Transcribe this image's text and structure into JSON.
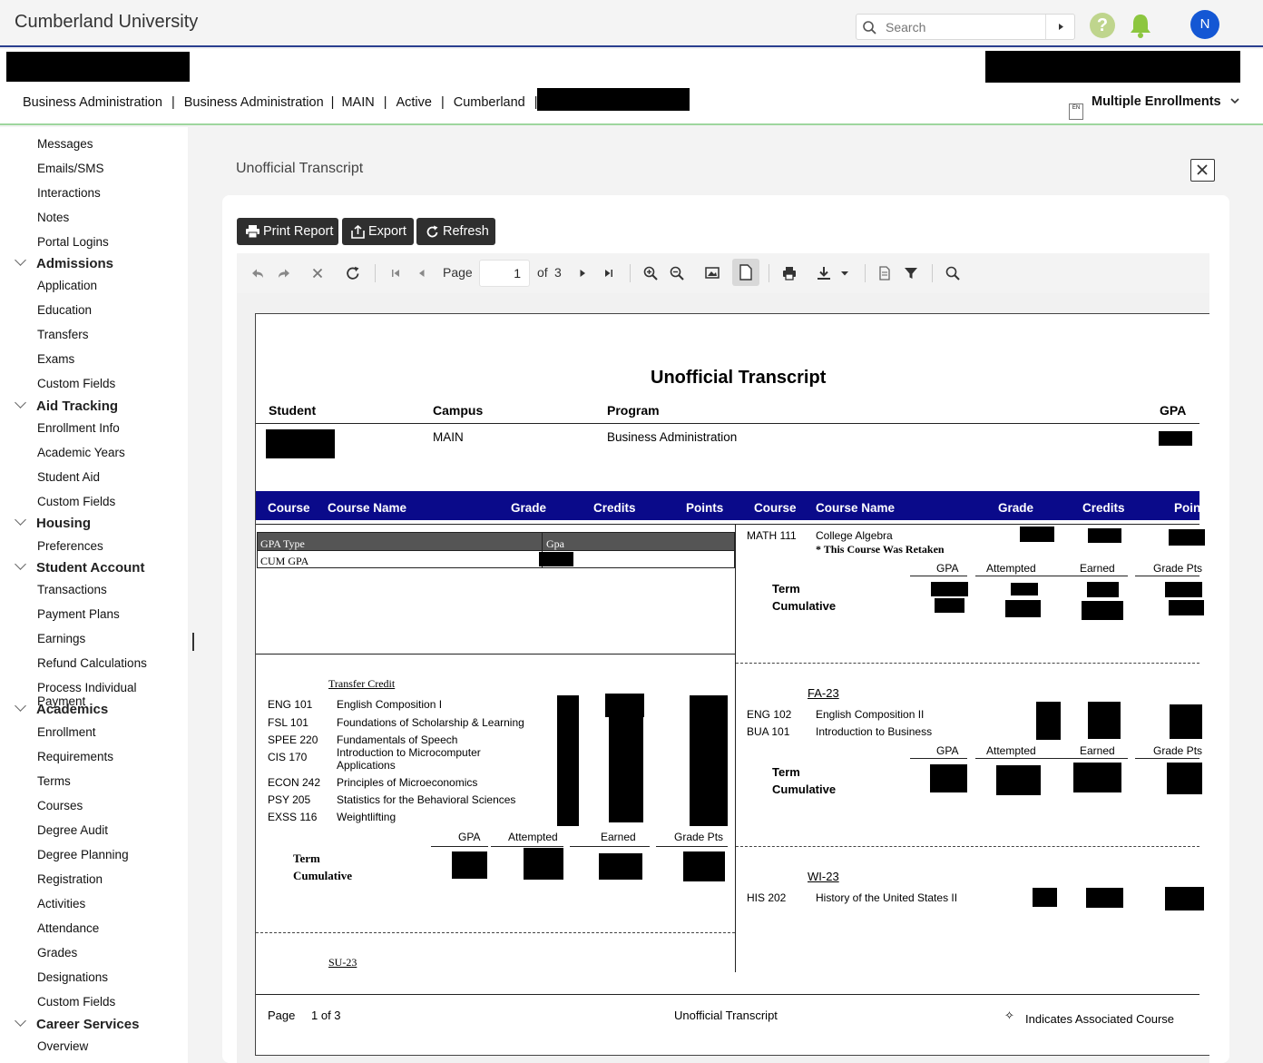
{
  "app": {
    "brand": "Cumberland University",
    "search_placeholder": "Search",
    "avatar_initial": "N",
    "help_glyph": "?"
  },
  "enrollment": {
    "crumbs": [
      "Business Administration",
      "Business Administration",
      "MAIN",
      "Active",
      "Cumberland"
    ],
    "separator": "|",
    "multi_label": "Multiple Enrollments",
    "multi_icon_text": "EN"
  },
  "sidebar": {
    "items_top": [
      "Messages",
      "Emails/SMS",
      "Interactions",
      "Notes",
      "Portal Logins"
    ],
    "groups": [
      {
        "label": "Admissions",
        "items": [
          "Application",
          "Education",
          "Transfers",
          "Exams",
          "Custom Fields"
        ]
      },
      {
        "label": "Aid Tracking",
        "items": [
          "Enrollment Info",
          "Academic Years",
          "Student Aid",
          "Custom Fields"
        ]
      },
      {
        "label": "Housing",
        "items": [
          "Preferences"
        ]
      },
      {
        "label": "Student Account",
        "items": [
          "Transactions",
          "Payment Plans",
          "Earnings",
          "Refund Calculations",
          "Process Individual Payment"
        ]
      },
      {
        "label": "Academics",
        "items": [
          "Enrollment",
          "Requirements",
          "Terms",
          "Courses",
          "Degree Audit",
          "Degree Planning",
          "Registration",
          "Activities",
          "Attendance",
          "Grades",
          "Designations",
          "Custom Fields"
        ]
      },
      {
        "label": "Career Services",
        "items": [
          "Overview"
        ]
      }
    ]
  },
  "panel": {
    "title": "Unofficial Transcript",
    "buttons": {
      "print": "Print Report",
      "export": "Export",
      "refresh": "Refresh"
    }
  },
  "toolbar": {
    "page_label": "Page",
    "page_value": "1",
    "of_label": "of",
    "total_pages": "3"
  },
  "report": {
    "title": "Unofficial Transcript",
    "header_cols": {
      "student": "Student",
      "campus": "Campus",
      "program": "Program",
      "gpa": "GPA"
    },
    "campus": "MAIN",
    "program": "Business Administration",
    "course_cols": {
      "course": "Course",
      "course_name": "Course Name",
      "grade": "Grade",
      "credits": "Credits",
      "points": "Points",
      "points_cut": "Poin"
    },
    "gpa_table": {
      "type_header": "GPA Type",
      "gpa_header": "Gpa",
      "row_label": "CUM GPA"
    },
    "transfer": {
      "heading": "Transfer Credit",
      "courses": [
        {
          "code": "ENG 101",
          "name": "English Composition I"
        },
        {
          "code": "FSL 101",
          "name": "Foundations of Scholarship & Learning"
        },
        {
          "code": "SPEE 220",
          "name": "Fundamentals of Speech"
        },
        {
          "code": "CIS 170",
          "name": "Introduction to Microcomputer Applications"
        },
        {
          "code": "ECON 242",
          "name": "Principles of Microeconomics"
        },
        {
          "code": "PSY 205",
          "name": "Statistics for the Behavioral Sciences"
        },
        {
          "code": "EXSS 116",
          "name": "Weightlifting"
        }
      ]
    },
    "summary_cols": {
      "gpa": "GPA",
      "attempted": "Attempted",
      "earned": "Earned",
      "grade_pts": "Grade Pts",
      "grade_pts_cut": "Grade Pts"
    },
    "term_label": "Term",
    "cumulative_label": "Cumulative",
    "su23": "SU-23",
    "right_first": {
      "code": "MATH 111",
      "name": "College Algebra",
      "retaken": "* This Course Was Retaken"
    },
    "fa23": {
      "term": "FA-23",
      "courses": [
        {
          "code": "ENG 102",
          "name": "English Composition II"
        },
        {
          "code": "BUA 101",
          "name": "Introduction to Business"
        }
      ]
    },
    "wi23": {
      "term": "WI-23",
      "courses": [
        {
          "code": "HIS 202",
          "name": "History of the United States II"
        }
      ]
    },
    "footer": {
      "page_label": "Page",
      "page_value": "1 of 3",
      "center": "Unofficial Transcript",
      "legend_glyph": "✧",
      "legend": "Indicates Associated Course"
    }
  }
}
